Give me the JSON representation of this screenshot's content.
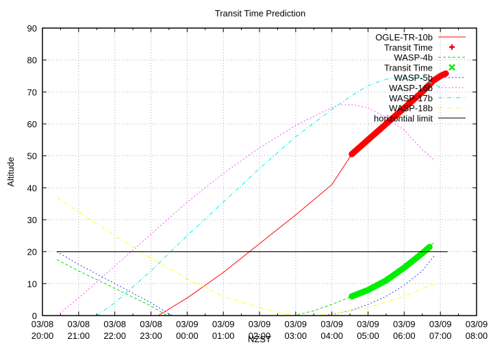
{
  "chart_data": {
    "type": "line",
    "title": "Transit Time Prediction",
    "xlabel": "NZST",
    "ylabel": "Altitude",
    "ylim": [
      0,
      90
    ],
    "yticks": [
      0,
      10,
      20,
      30,
      40,
      50,
      60,
      70,
      80,
      90
    ],
    "xlim_hours_from_start": [
      0,
      12
    ],
    "xticks": [
      {
        "date": "03/08",
        "time": "20:00"
      },
      {
        "date": "03/08",
        "time": "21:00"
      },
      {
        "date": "03/08",
        "time": "22:00"
      },
      {
        "date": "03/08",
        "time": "23:00"
      },
      {
        "date": "03/09",
        "time": "00:00"
      },
      {
        "date": "03/09",
        "time": "01:00"
      },
      {
        "date": "03/09",
        "time": "02:00"
      },
      {
        "date": "03/09",
        "time": "03:00"
      },
      {
        "date": "03/09",
        "time": "04:00"
      },
      {
        "date": "03/09",
        "time": "05:00"
      },
      {
        "date": "03/09",
        "time": "06:00"
      },
      {
        "date": "03/09",
        "time": "07:00"
      },
      {
        "date": "03/09",
        "time": "08:00"
      }
    ],
    "grid": true,
    "legend_position": "top-right-inside",
    "series": [
      {
        "name": "OGLE-TR-10b",
        "color": "#ff0000",
        "style": "solid",
        "points": [
          [
            3.2,
            0
          ],
          [
            4,
            5.5
          ],
          [
            5,
            13.5
          ],
          [
            6,
            22.5
          ],
          [
            7,
            31.5
          ],
          [
            8,
            41
          ],
          [
            8.55,
            50.5
          ],
          [
            9,
            55
          ],
          [
            9.5,
            60
          ],
          [
            10,
            65
          ],
          [
            10.5,
            70
          ],
          [
            11,
            75.3
          ],
          [
            11.15,
            76
          ]
        ]
      },
      {
        "name": "Transit Time",
        "color": "#ff0000",
        "style": "thick",
        "marker": "plus",
        "points": [
          [
            8.55,
            50.5
          ],
          [
            9,
            55
          ],
          [
            9.5,
            60
          ],
          [
            10,
            65
          ],
          [
            10.5,
            70
          ],
          [
            10.8,
            73.5
          ],
          [
            11,
            75
          ],
          [
            11.15,
            75.8
          ]
        ]
      },
      {
        "name": "WASP-4b",
        "color": "#00dd00",
        "style": "dashed",
        "points": [
          [
            0.4,
            17.5
          ],
          [
            1,
            14
          ],
          [
            2,
            8.5
          ],
          [
            3,
            3
          ],
          [
            3.3,
            1
          ],
          [
            3.45,
            0
          ],
          [
            6.95,
            0
          ],
          [
            7.5,
            1.5
          ],
          [
            8,
            3.5
          ],
          [
            8.55,
            6
          ],
          [
            9,
            8
          ],
          [
            9.5,
            11
          ],
          [
            10,
            15
          ],
          [
            10.5,
            20
          ],
          [
            10.85,
            23
          ]
        ]
      },
      {
        "name": "Transit Time",
        "color": "#00ee00",
        "style": "thick",
        "marker": "cross",
        "points": [
          [
            8.55,
            6
          ],
          [
            9,
            8
          ],
          [
            9.5,
            11
          ],
          [
            10,
            15
          ],
          [
            10.5,
            19.5
          ],
          [
            10.7,
            21.5
          ]
        ]
      },
      {
        "name": "WASP-5b",
        "color": "#3333ff",
        "style": "dotted",
        "points": [
          [
            0.4,
            20
          ],
          [
            1,
            16
          ],
          [
            2,
            10
          ],
          [
            3,
            4
          ],
          [
            3.5,
            0.5
          ],
          [
            3.6,
            0
          ],
          [
            7.8,
            0
          ],
          [
            8.5,
            1.5
          ],
          [
            9,
            3.5
          ],
          [
            9.5,
            6
          ],
          [
            10,
            9.5
          ],
          [
            10.5,
            14
          ],
          [
            10.85,
            19
          ]
        ]
      },
      {
        "name": "WASP-16b",
        "color": "#ff44ff",
        "style": "dotted",
        "points": [
          [
            0.4,
            0
          ],
          [
            1,
            5.5
          ],
          [
            2,
            15.5
          ],
          [
            3,
            25.5
          ],
          [
            4,
            35.5
          ],
          [
            5,
            44.5
          ],
          [
            6,
            52.5
          ],
          [
            7,
            59.5
          ],
          [
            7.7,
            63.5
          ],
          [
            8.2,
            66
          ],
          [
            8.6,
            66
          ],
          [
            9,
            65
          ],
          [
            9.5,
            62
          ],
          [
            10,
            58
          ],
          [
            10.5,
            52
          ],
          [
            10.85,
            48.5
          ]
        ]
      },
      {
        "name": "WASP-17b",
        "color": "#00eeee",
        "style": "dashdot",
        "points": [
          [
            1.5,
            0
          ],
          [
            2,
            4
          ],
          [
            3,
            14
          ],
          [
            4,
            25
          ],
          [
            5,
            35.5
          ],
          [
            6,
            46
          ],
          [
            7,
            56
          ],
          [
            8,
            64.5
          ],
          [
            8.5,
            68.5
          ],
          [
            9,
            72
          ],
          [
            9.5,
            74
          ],
          [
            10,
            74.8
          ],
          [
            10.5,
            74
          ],
          [
            11,
            71.5
          ]
        ]
      },
      {
        "name": "WASP-18b",
        "color": "#ffff00",
        "style": "dashdot",
        "points": [
          [
            0.4,
            37
          ],
          [
            1,
            32.5
          ],
          [
            2,
            25
          ],
          [
            3,
            18
          ],
          [
            4,
            11.5
          ],
          [
            5,
            6
          ],
          [
            6,
            2.5
          ],
          [
            6.7,
            0.5
          ],
          [
            7,
            0
          ],
          [
            7.5,
            0
          ],
          [
            8,
            0.5
          ],
          [
            9,
            2.5
          ],
          [
            10,
            6
          ],
          [
            10.85,
            10
          ]
        ]
      },
      {
        "name": "horizontial limit",
        "color": "#000000",
        "style": "solid",
        "points": [
          [
            0.4,
            20
          ],
          [
            11.2,
            20
          ]
        ]
      }
    ],
    "legend": [
      {
        "label": "OGLE-TR-10b",
        "color": "#ff0000",
        "sample": "line-solid"
      },
      {
        "label": "Transit Time",
        "color": "#ff0000",
        "sample": "plus"
      },
      {
        "label": "WASP-4b",
        "color": "#00dd00",
        "sample": "line-dashed"
      },
      {
        "label": "Transit Time",
        "color": "#00ee00",
        "sample": "cross"
      },
      {
        "label": "WASP-5b",
        "color": "#3333ff",
        "sample": "line-dotted"
      },
      {
        "label": "WASP-16b",
        "color": "#ff44ff",
        "sample": "line-dotted"
      },
      {
        "label": "WASP-17b",
        "color": "#00eeee",
        "sample": "line-dashdot"
      },
      {
        "label": "WASP-18b",
        "color": "#ffff00",
        "sample": "line-dashdot"
      },
      {
        "label": "horizontial limit",
        "color": "#000000",
        "sample": "line-solid"
      }
    ]
  }
}
